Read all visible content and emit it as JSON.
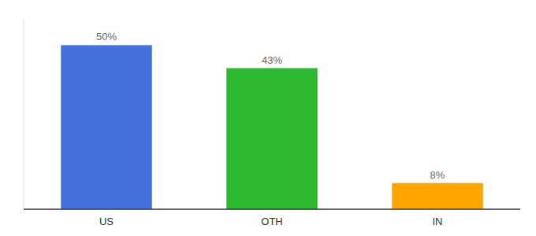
{
  "chart_data": {
    "type": "bar",
    "categories": [
      "US",
      "OTH",
      "IN"
    ],
    "values": [
      50,
      43,
      8
    ],
    "value_labels": [
      "50%",
      "43%",
      "8%"
    ],
    "colors": [
      "#4472db",
      "#2db832",
      "#ffa500"
    ],
    "ylim": [
      0,
      58
    ],
    "data_labels": true,
    "tick_labels": "x"
  }
}
